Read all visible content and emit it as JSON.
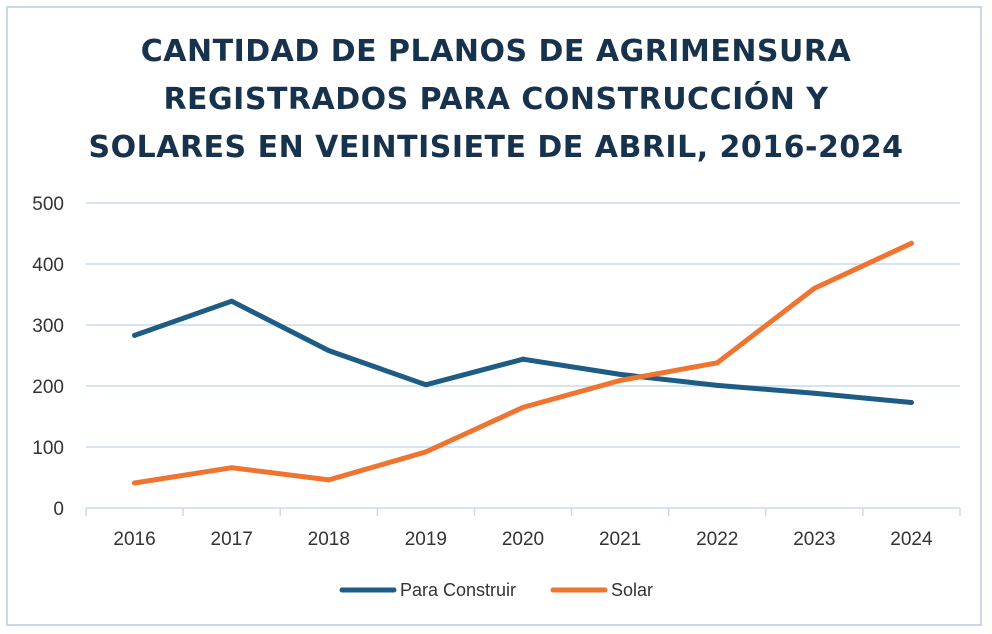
{
  "chart_data": {
    "type": "line",
    "title_lines": [
      "CANTIDAD DE PLANOS DE AGRIMENSURA",
      "REGISTRADOS PARA CONSTRUCCIÓN Y",
      "SOLARES EN VEINTISIETE DE ABRIL, 2016-2024"
    ],
    "categories": [
      "2016",
      "2017",
      "2018",
      "2019",
      "2020",
      "2021",
      "2022",
      "2023",
      "2024"
    ],
    "y_ticks": [
      "0",
      "100",
      "200",
      "300",
      "400",
      "500"
    ],
    "ylim": [
      0,
      500
    ],
    "grid": true,
    "legend_position": "bottom",
    "series": [
      {
        "name": "Para Construir",
        "color": "#1f5c85",
        "values": [
          283,
          339,
          258,
          202,
          244,
          219,
          201,
          188,
          173
        ]
      },
      {
        "name": "Solar",
        "color": "#ee7430",
        "values": [
          41,
          66,
          46,
          92,
          165,
          209,
          238,
          360,
          434
        ]
      }
    ]
  }
}
